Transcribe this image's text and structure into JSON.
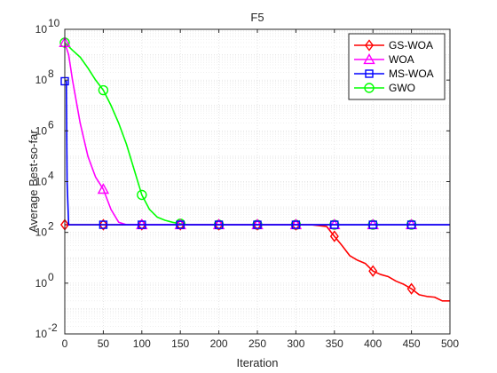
{
  "chart_data": {
    "type": "line",
    "title": "F5",
    "xlabel": "Iteration",
    "ylabel": "Average Best-so-far",
    "xlim": [
      0,
      500
    ],
    "ylim_log10": [
      -2,
      10
    ],
    "y_scale": "log",
    "x_ticks": [
      0,
      50,
      100,
      150,
      200,
      250,
      300,
      350,
      400,
      450,
      500
    ],
    "y_ticks": [
      {
        "base": "10",
        "exp": "-2"
      },
      {
        "base": "10",
        "exp": "0"
      },
      {
        "base": "10",
        "exp": "2"
      },
      {
        "base": "10",
        "exp": "4"
      },
      {
        "base": "10",
        "exp": "6"
      },
      {
        "base": "10",
        "exp": "8"
      },
      {
        "base": "10",
        "exp": "10"
      }
    ],
    "grid": true,
    "minor_grid": true,
    "legend_position": "top-right",
    "series": [
      {
        "name": "GS-WOA",
        "color": "#ff0000",
        "marker": "diamond",
        "x": [
          0,
          50,
          100,
          150,
          200,
          250,
          300,
          320,
          340,
          350,
          360,
          370,
          380,
          390,
          400,
          410,
          420,
          430,
          440,
          450,
          460,
          470,
          480,
          490,
          500
        ],
        "y": [
          200,
          200,
          200,
          200,
          200,
          200,
          200,
          200,
          170,
          70,
          30,
          12,
          8,
          6,
          3,
          2.2,
          1.8,
          1.2,
          0.9,
          0.6,
          0.35,
          0.3,
          0.28,
          0.2,
          0.2
        ],
        "marker_x": [
          0,
          50,
          100,
          150,
          200,
          250,
          300,
          350,
          400,
          450
        ]
      },
      {
        "name": "WOA",
        "color": "#ff00ff",
        "marker": "triangle",
        "x": [
          0,
          5,
          10,
          20,
          30,
          40,
          50,
          60,
          70,
          80,
          90,
          100,
          150,
          200,
          250,
          300,
          350,
          400,
          450,
          500
        ],
        "y": [
          3000000000,
          1000000000,
          100000000,
          2000000,
          100000,
          15000,
          5000,
          800,
          250,
          200,
          200,
          200,
          200,
          200,
          200,
          200,
          200,
          200,
          200,
          200
        ],
        "marker_x": [
          0,
          50,
          100,
          150,
          200,
          250,
          300,
          350,
          400,
          450
        ]
      },
      {
        "name": "MS-WOA",
        "color": "#0000ff",
        "marker": "square",
        "x": [
          0,
          2,
          3,
          5,
          10,
          50,
          100,
          150,
          200,
          250,
          300,
          350,
          400,
          450,
          500
        ],
        "y": [
          90000000,
          90000000,
          10000,
          200,
          200,
          200,
          200,
          200,
          200,
          200,
          200,
          200,
          200,
          200,
          200
        ],
        "marker_x": [
          0,
          50,
          100,
          150,
          200,
          250,
          300,
          350,
          400,
          450
        ]
      },
      {
        "name": "GWO",
        "color": "#00ff00",
        "marker": "circle",
        "x": [
          0,
          10,
          20,
          30,
          40,
          50,
          60,
          70,
          80,
          90,
          100,
          110,
          120,
          130,
          140,
          150,
          160,
          200,
          250,
          300,
          350,
          400,
          450,
          500
        ],
        "y": [
          3000000000,
          1500000000,
          800000000,
          300000000,
          100000000,
          40000000,
          10000000,
          2000000,
          300000,
          30000,
          3000,
          800,
          400,
          300,
          250,
          220,
          200,
          200,
          200,
          200,
          200,
          200,
          200,
          200
        ],
        "marker_x": [
          0,
          50,
          100,
          150,
          200,
          250,
          300,
          350,
          400,
          450
        ]
      }
    ]
  }
}
